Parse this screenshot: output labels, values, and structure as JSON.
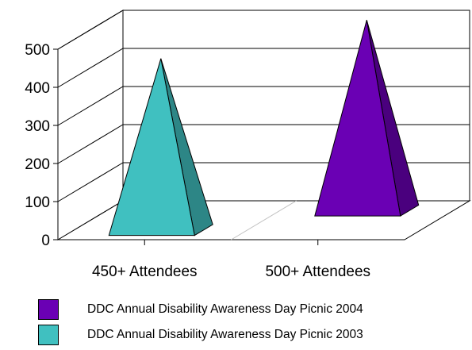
{
  "chart_data": {
    "type": "bar",
    "shape": "3d-pyramid",
    "categories": [
      "450+ Attendees",
      "500+ Attendees"
    ],
    "series": [
      {
        "name": "DDC Annual Disability Awareness Day Picnic 2004",
        "values": [
          null,
          500
        ],
        "color": "#6a00b4"
      },
      {
        "name": "DDC Annual Disability Awareness Day Picnic 2003",
        "values": [
          450,
          null
        ],
        "color": "#40c0c0"
      }
    ],
    "ylim": [
      0,
      500
    ],
    "yticks": [
      "0",
      "100",
      "200",
      "300",
      "400",
      "500"
    ],
    "grid": true,
    "legend_position": "bottom"
  }
}
